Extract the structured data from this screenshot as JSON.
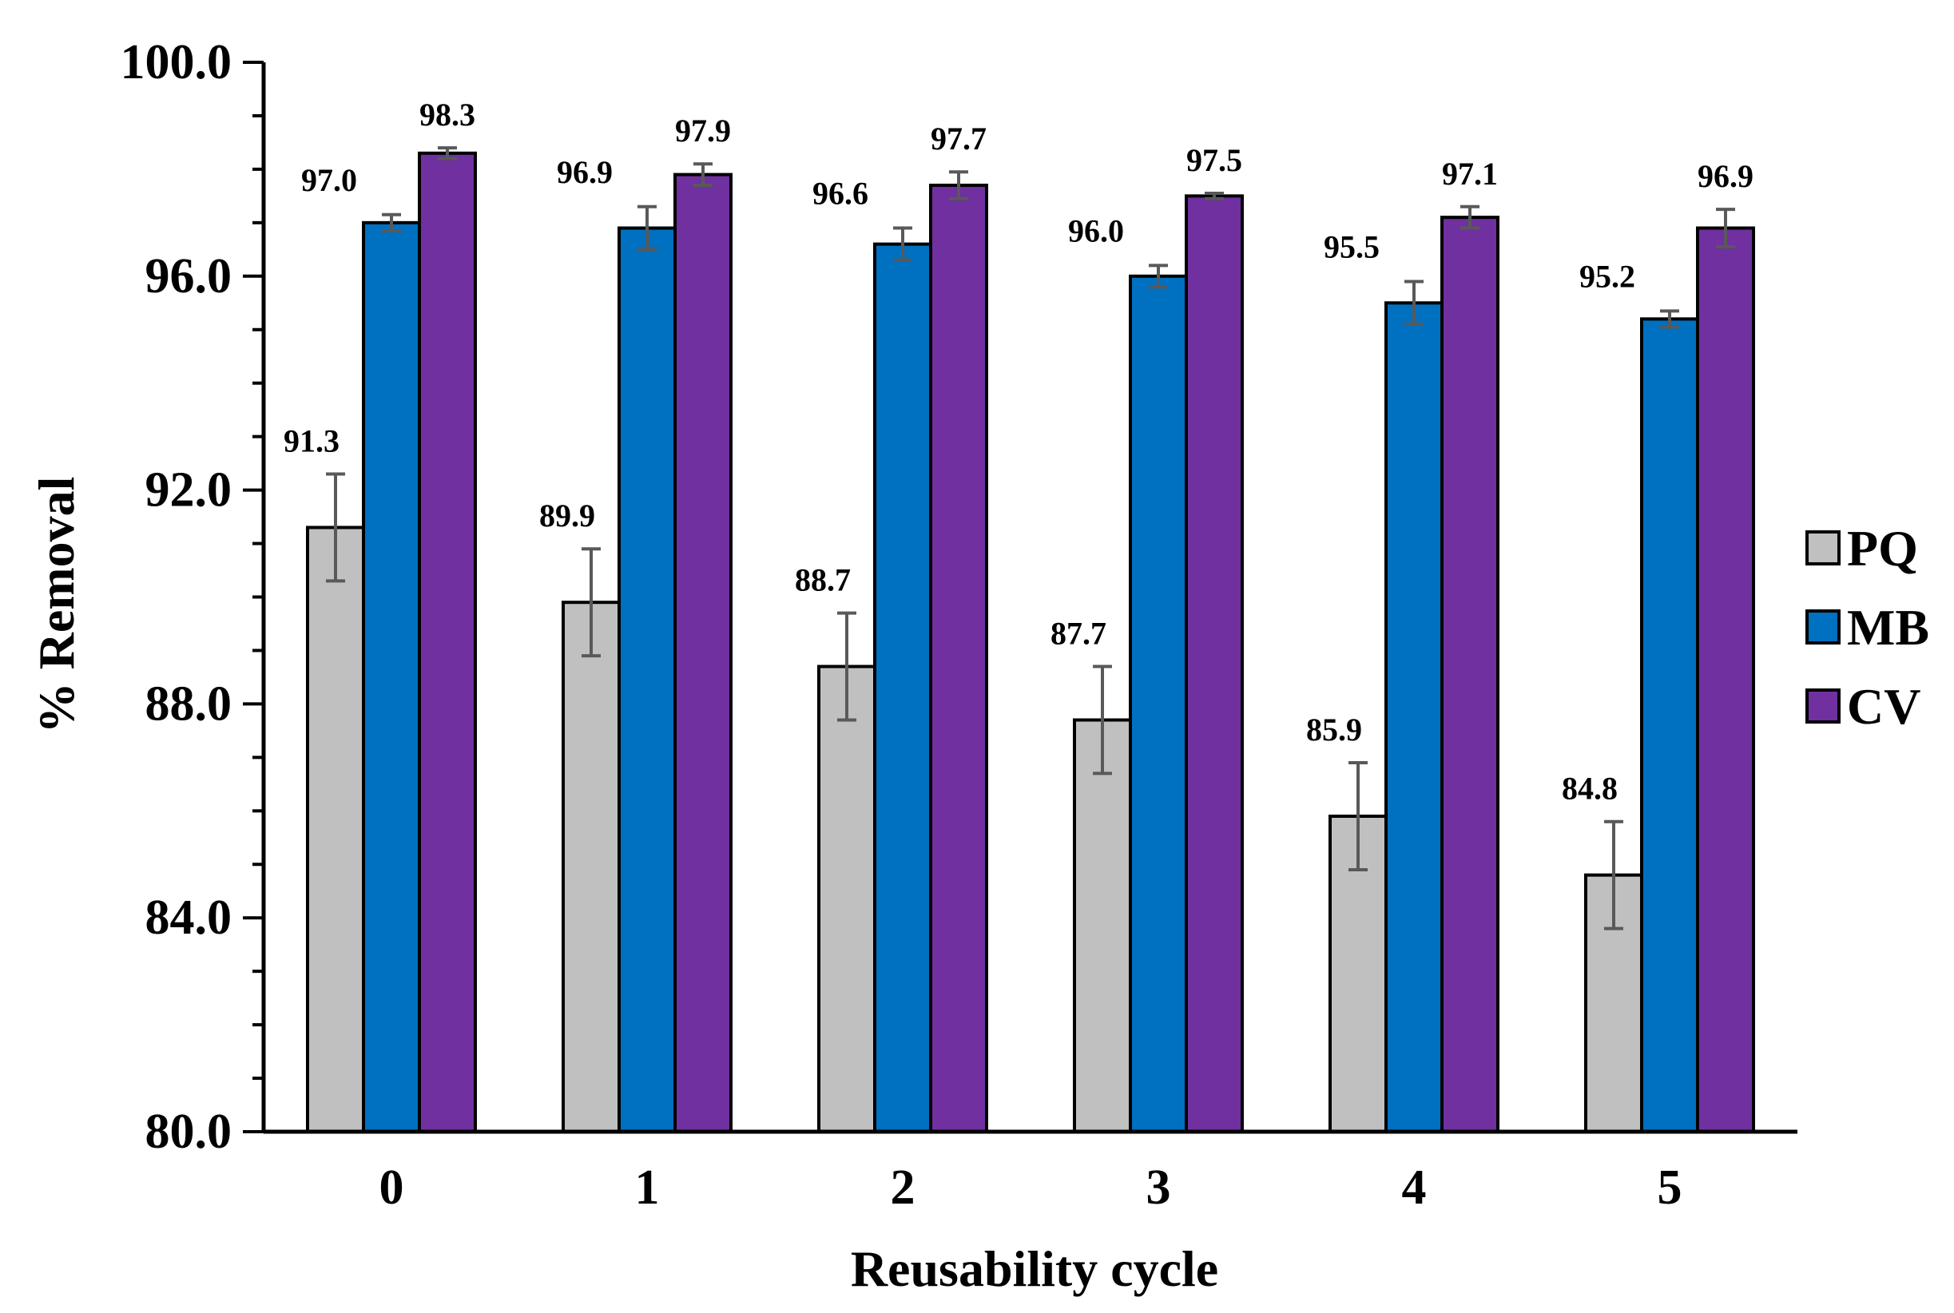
{
  "chart_data": {
    "type": "bar",
    "title": "",
    "xlabel": "Reusability cycle",
    "ylabel": "% Removal",
    "ylim": [
      80,
      100
    ],
    "yticks": [
      "80.0",
      "84.0",
      "88.0",
      "92.0",
      "96.0",
      "100.0"
    ],
    "ytick_values": [
      80,
      84,
      88,
      92,
      96,
      100
    ],
    "categories": [
      "0",
      "1",
      "2",
      "3",
      "4",
      "5"
    ],
    "legend_position": "right",
    "grid": false,
    "series": [
      {
        "name": "PQ",
        "color": "#c0c0c0",
        "values": [
          91.3,
          89.9,
          88.7,
          87.7,
          85.9,
          84.8
        ],
        "labels": [
          "91.3",
          "89.9",
          "88.7",
          "87.7",
          "85.9",
          "84.8"
        ],
        "errors": [
          1.0,
          1.0,
          1.0,
          1.0,
          1.0,
          1.0
        ]
      },
      {
        "name": "MB",
        "color": "#0070c0",
        "values": [
          97.0,
          96.9,
          96.6,
          96.0,
          95.5,
          95.2
        ],
        "labels": [
          "97.0",
          "96.9",
          "96.6",
          "96.0",
          "95.5",
          "95.2"
        ],
        "errors": [
          0.15,
          0.4,
          0.3,
          0.2,
          0.4,
          0.15
        ]
      },
      {
        "name": "CV",
        "color": "#7030a0",
        "values": [
          98.3,
          97.9,
          97.7,
          97.5,
          97.1,
          96.9
        ],
        "labels": [
          "98.3",
          "97.9",
          "97.7",
          "97.5",
          "97.1",
          "96.9"
        ],
        "errors": [
          0.1,
          0.2,
          0.25,
          0.05,
          0.2,
          0.35
        ]
      }
    ]
  }
}
